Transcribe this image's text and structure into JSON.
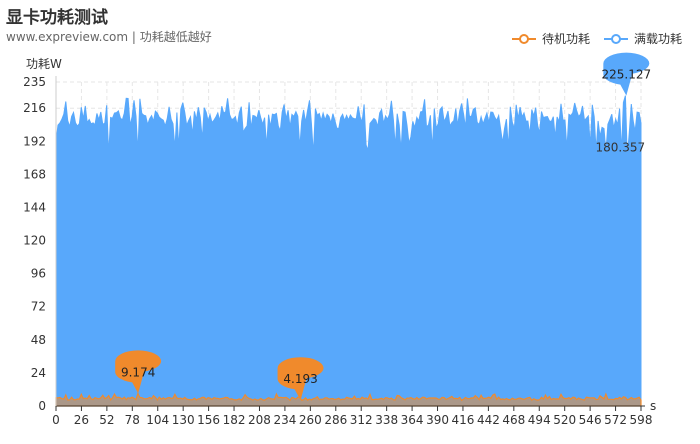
{
  "chart_data": {
    "type": "area",
    "title": "显卡功耗测试",
    "subtitle": "www.expreview.com | 功耗越低越好",
    "ylabel": "功耗W",
    "xlabel": "s",
    "ylim": [
      0,
      235
    ],
    "xlim": [
      0,
      598
    ],
    "yticks": [
      0,
      24,
      48,
      72,
      96,
      120,
      144,
      168,
      192,
      216,
      235
    ],
    "xticks": [
      0,
      26,
      52,
      78,
      104,
      130,
      156,
      182,
      208,
      234,
      260,
      286,
      312,
      338,
      364,
      390,
      416,
      442,
      468,
      494,
      520,
      546,
      572,
      598
    ],
    "grid": true,
    "legend_position": "top-right",
    "series": [
      {
        "name": "待机功耗",
        "color": "#F08A2C",
        "typical_low": 4.6,
        "typical_high": 6.4,
        "max": {
          "x": 84,
          "value": 9.174,
          "label": "9.174"
        },
        "min": {
          "x": 250,
          "value": 4.193,
          "label": "4.193"
        }
      },
      {
        "name": "满载功耗",
        "color": "#58A8FB",
        "start_value": 192,
        "typical_low": 201,
        "typical_high": 214,
        "max": {
          "x": 583,
          "value": 225.127,
          "label": "225.127"
        },
        "min": {
          "x": 583,
          "value": 180.357,
          "label": "180.357"
        }
      }
    ]
  }
}
